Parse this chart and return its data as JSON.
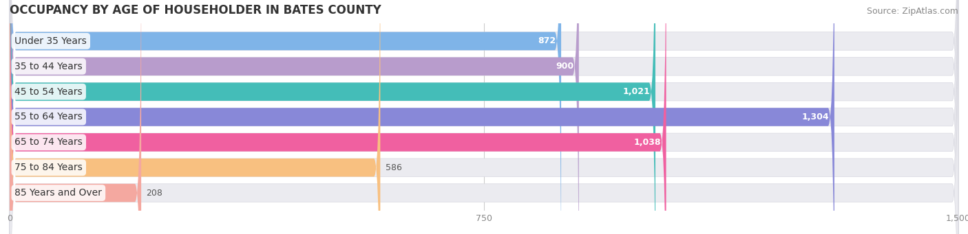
{
  "title": "OCCUPANCY BY AGE OF HOUSEHOLDER IN BATES COUNTY",
  "source": "Source: ZipAtlas.com",
  "categories": [
    "Under 35 Years",
    "35 to 44 Years",
    "45 to 54 Years",
    "55 to 64 Years",
    "65 to 74 Years",
    "75 to 84 Years",
    "85 Years and Over"
  ],
  "values": [
    872,
    900,
    1021,
    1304,
    1038,
    586,
    208
  ],
  "bar_colors": [
    "#7fb4e8",
    "#b89ccc",
    "#44bdb8",
    "#8888d8",
    "#f060a0",
    "#f8c080",
    "#f4a8a0"
  ],
  "xlim": [
    0,
    1500
  ],
  "xticks": [
    0,
    750,
    1500
  ],
  "background_color": "#ffffff",
  "bar_bg_color": "#ebebf0",
  "title_fontsize": 12,
  "source_fontsize": 9,
  "label_fontsize": 10,
  "value_fontsize": 9
}
